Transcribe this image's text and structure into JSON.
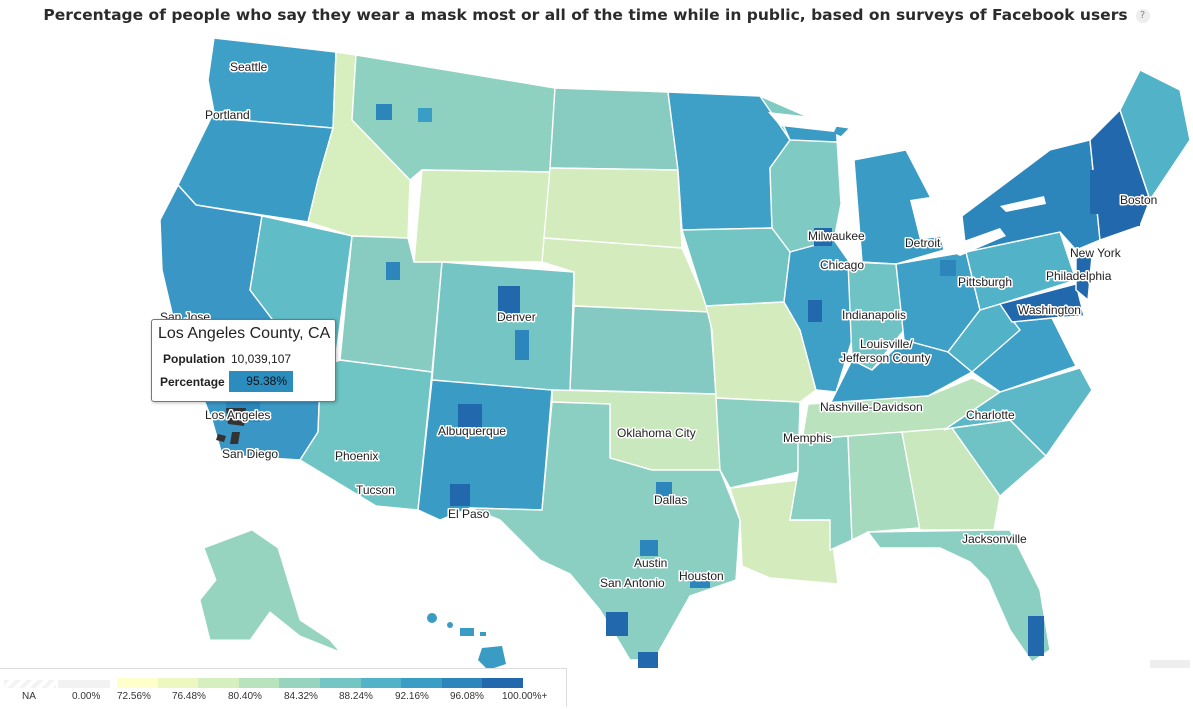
{
  "title": "Percentage of people who say they wear a mask most or all of the time while in public, based on surveys of Facebook users",
  "help_label": "?",
  "cities": [
    "Seattle",
    "Portland",
    "San Jose",
    "Los Angeles",
    "San Diego",
    "Phoenix",
    "Tucson",
    "Albuquerque",
    "El Paso",
    "Denver",
    "Oklahoma City",
    "Dallas",
    "Austin",
    "San Antonio",
    "Houston",
    "Memphis",
    "Nashville-Davidson",
    "Louisville/",
    "Jefferson County",
    "Indianapolis",
    "Chicago",
    "Milwaukee",
    "Detroit",
    "Pittsburgh",
    "Washington",
    "Philadelphia",
    "New York",
    "Boston",
    "Charlotte",
    "Jacksonville"
  ],
  "tooltip": {
    "county": "Los Angeles County, CA",
    "population_label": "Population",
    "population_value": "10,039,107",
    "percentage_label": "Percentage",
    "percentage_value": "95.38%"
  },
  "legend": {
    "na_label": "NA",
    "zero_label": "0.00%",
    "scale_labels": [
      "72.56%",
      "76.48%",
      "80.40%",
      "84.32%",
      "88.24%",
      "92.16%",
      "96.08%",
      "100.00%+"
    ],
    "colors": [
      "#ffffcc",
      "#edf8c0",
      "#d6efbe",
      "#b9e3bd",
      "#96d4c0",
      "#73c6c4",
      "#52b3c8",
      "#3a9dc6",
      "#2c86bc",
      "#2268ac"
    ]
  }
}
